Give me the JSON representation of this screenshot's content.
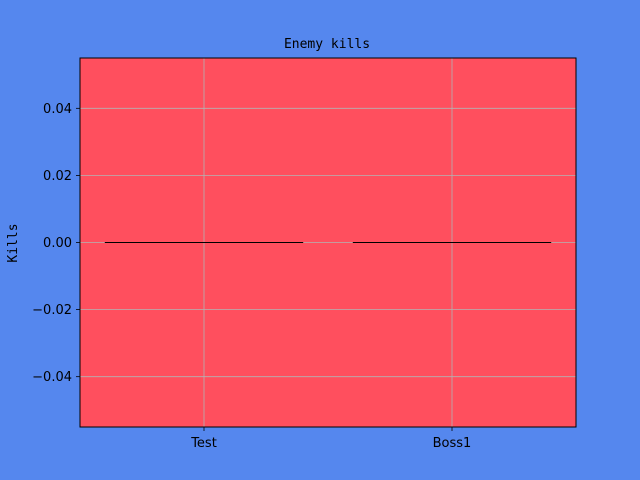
{
  "chart_data": {
    "type": "bar",
    "title": "Enemy kills",
    "xlabel": "",
    "ylabel": "Kills",
    "categories": [
      "Test",
      "Boss1"
    ],
    "values": [
      0,
      0
    ],
    "ylim": [
      -0.055,
      0.055
    ],
    "yticks": [
      -0.04,
      -0.02,
      0.0,
      0.02,
      0.04
    ],
    "ytick_labels": [
      "−0.04",
      "−0.02",
      "0.00",
      "0.02",
      "0.04"
    ],
    "grid": true,
    "legend": "none"
  },
  "colors": {
    "figure_background": "#5587ee",
    "plot_background": "#ff4f5e",
    "grid": "#b3b3b3",
    "bar_edge": "#000000",
    "spine": "#000000"
  }
}
